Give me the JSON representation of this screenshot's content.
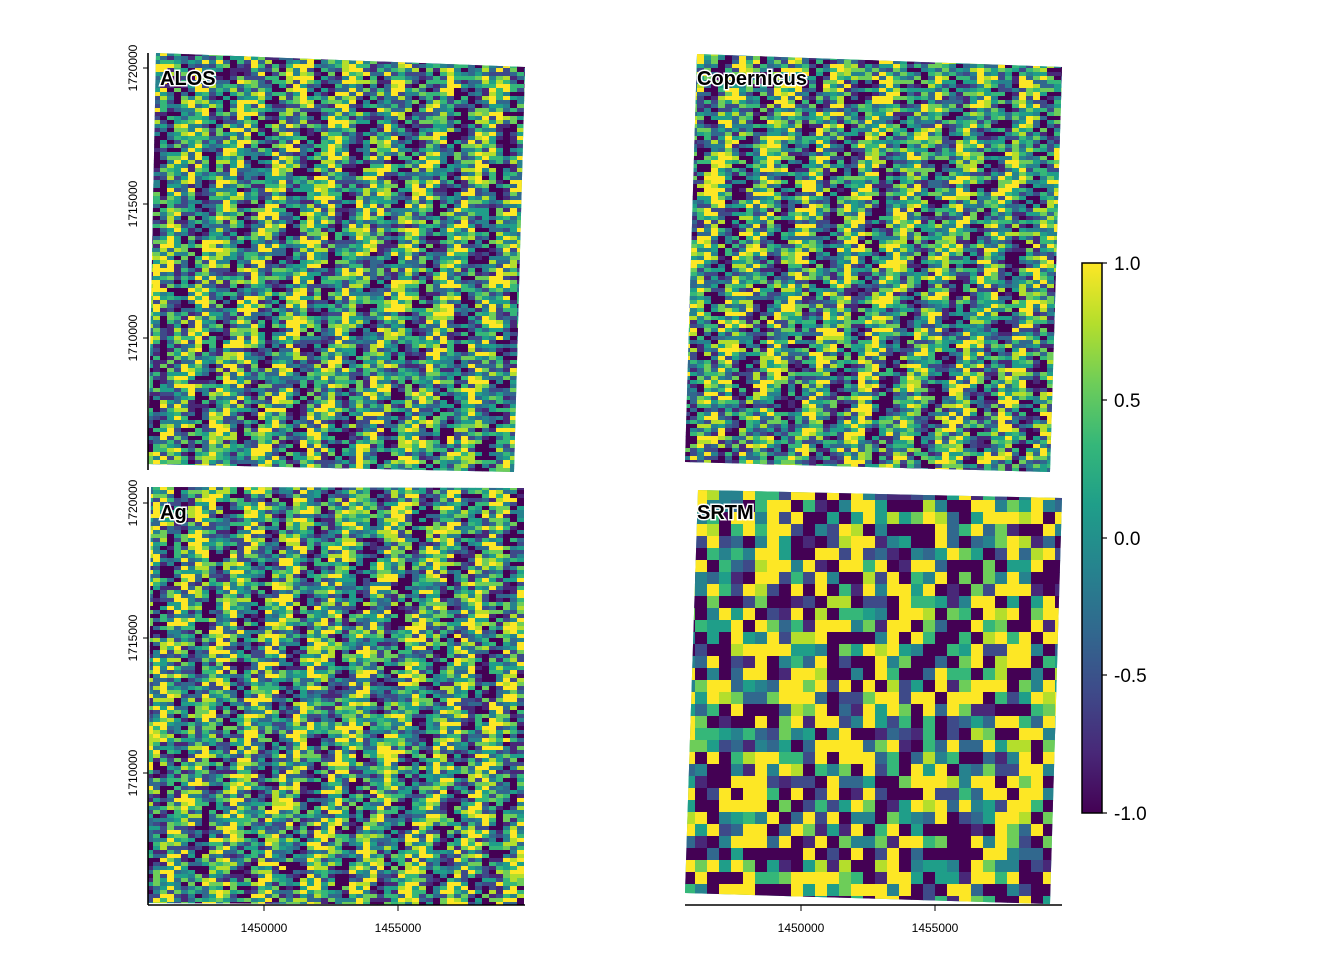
{
  "chart_data": {
    "type": "heatmap",
    "title": "",
    "xlabel": "",
    "ylabel": "",
    "colormap": "viridis",
    "palette": [
      "#440154",
      "#482878",
      "#3E4A89",
      "#31688E",
      "#26828E",
      "#1F9E89",
      "#35B779",
      "#6DCD59",
      "#B4DE2C",
      "#FDE725"
    ],
    "axis_color": "#000000",
    "x_ticks": [
      1450000,
      1455000
    ],
    "x_tick_labels": [
      "1450000",
      "1455000"
    ],
    "y_ticks": [
      1710000,
      1715000,
      1720000
    ],
    "y_tick_labels": [
      "1710000",
      "1715000",
      "1720000"
    ],
    "xlim": [
      1445600,
      1459600
    ],
    "ylim": [
      1705300,
      1720600
    ],
    "legend": {
      "placement": "right",
      "range": [
        -1.0,
        1.0
      ],
      "ticks": [
        1.0,
        0.5,
        0.0,
        -0.5,
        -1.0
      ],
      "tick_labels": [
        "1.0",
        "0.5",
        "0.0",
        "-0.5",
        "-1.0"
      ]
    },
    "panels": [
      {
        "name": "ALOS",
        "texture": "fine-striped"
      },
      {
        "name": "Copernicus",
        "texture": "fine-striped"
      },
      {
        "name": "Ag",
        "texture": "fine-striped"
      },
      {
        "name": "SRTM",
        "texture": "coarse-blotchy"
      }
    ]
  }
}
